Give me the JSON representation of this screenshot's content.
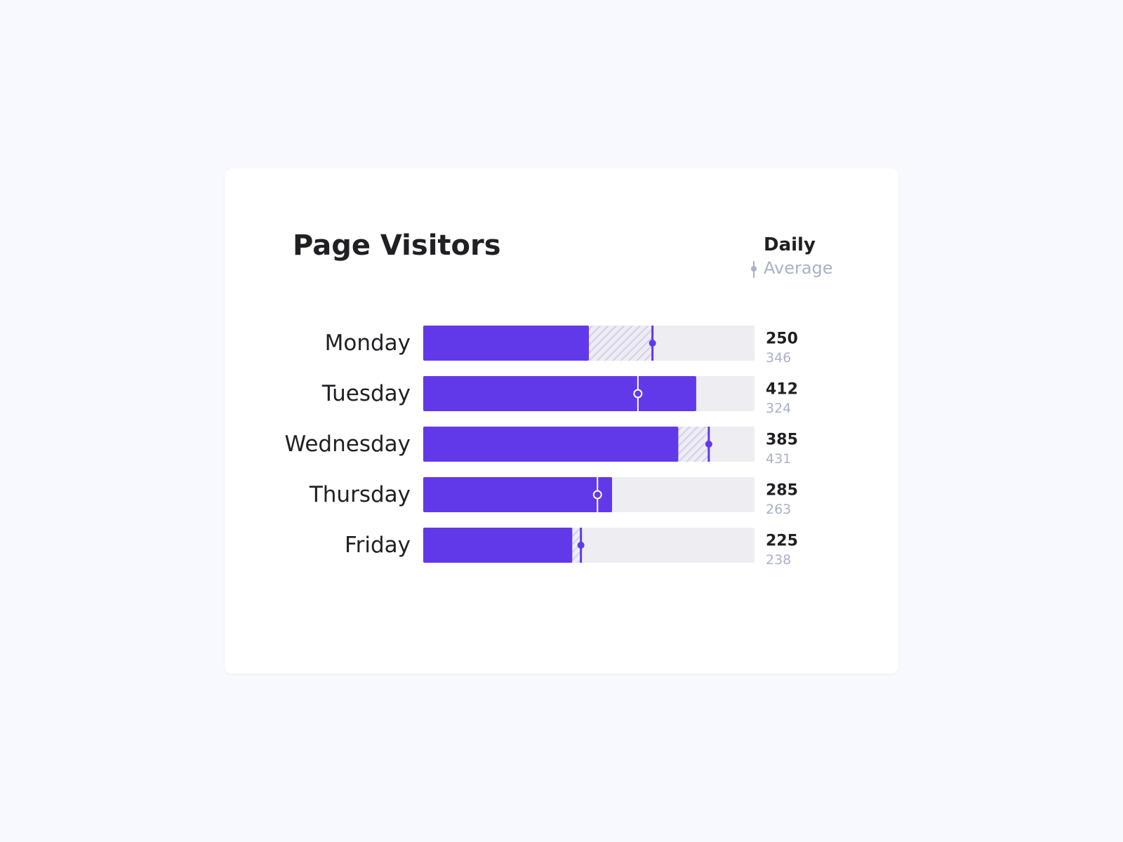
{
  "card": {
    "title": "Page Visitors"
  },
  "legend": {
    "daily_label": "Daily",
    "average_label": "Average",
    "average_icon": "average-marker-icon"
  },
  "colors": {
    "page_background": "#f8f9fe",
    "card_background": "#ffffff",
    "daily_bar": "#6139e9",
    "average_gap_hatch": "#d4cdf0",
    "track": "#ededf2",
    "text_primary": "#1f1f24",
    "text_muted": "#a9b1c7"
  },
  "chart_data": {
    "type": "bar",
    "orientation": "horizontal",
    "title": "Page Visitors",
    "categories": [
      "Monday",
      "Tuesday",
      "Wednesday",
      "Thursday",
      "Friday"
    ],
    "series": [
      {
        "name": "Daily",
        "values": [
          250,
          412,
          385,
          285,
          225
        ]
      },
      {
        "name": "Average",
        "values": [
          346,
          324,
          431,
          263,
          238
        ]
      }
    ],
    "xlim": [
      0,
      500
    ],
    "grid": false,
    "legend_position": "top-right"
  }
}
